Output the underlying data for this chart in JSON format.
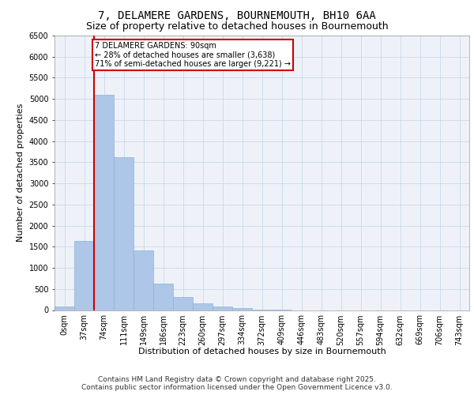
{
  "title_line1": "7, DELAMERE GARDENS, BOURNEMOUTH, BH10 6AA",
  "title_line2": "Size of property relative to detached houses in Bournemouth",
  "xlabel": "Distribution of detached houses by size in Bournemouth",
  "ylabel": "Number of detached properties",
  "footer_line1": "Contains HM Land Registry data © Crown copyright and database right 2025.",
  "footer_line2": "Contains public sector information licensed under the Open Government Licence v3.0.",
  "bar_labels": [
    "0sqm",
    "37sqm",
    "74sqm",
    "111sqm",
    "149sqm",
    "186sqm",
    "223sqm",
    "260sqm",
    "297sqm",
    "334sqm",
    "372sqm",
    "409sqm",
    "446sqm",
    "483sqm",
    "520sqm",
    "557sqm",
    "594sqm",
    "632sqm",
    "669sqm",
    "706sqm",
    "743sqm"
  ],
  "bar_values": [
    75,
    1640,
    5100,
    3620,
    1420,
    620,
    310,
    150,
    80,
    40,
    15,
    5,
    0,
    0,
    0,
    0,
    0,
    0,
    0,
    0,
    0
  ],
  "bar_color": "#aec6e8",
  "bar_edge_color": "#8ab4d8",
  "red_line_x": 2,
  "annotation_text": "7 DELAMERE GARDENS: 90sqm\n← 28% of detached houses are smaller (3,638)\n71% of semi-detached houses are larger (9,221) →",
  "annotation_box_color": "#ffffff",
  "annotation_box_edge_color": "#cc0000",
  "red_line_color": "#cc0000",
  "ylim": [
    0,
    6500
  ],
  "yticks": [
    0,
    500,
    1000,
    1500,
    2000,
    2500,
    3000,
    3500,
    4000,
    4500,
    5000,
    5500,
    6000,
    6500
  ],
  "grid_color": "#c8d8e8",
  "bg_color": "#eef2f8",
  "title_fontsize": 10,
  "subtitle_fontsize": 9,
  "axis_label_fontsize": 8,
  "tick_fontsize": 7,
  "annotation_fontsize": 7,
  "footer_fontsize": 6.5
}
